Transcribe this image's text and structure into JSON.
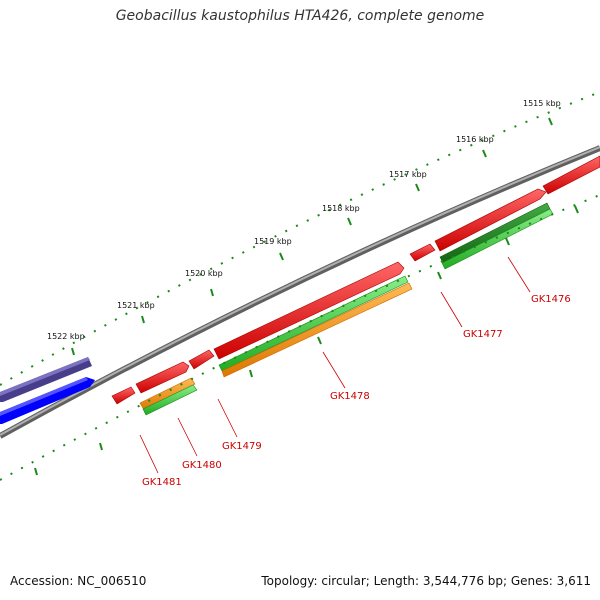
{
  "title": "Geobacillus kaustophilus HTA426, complete genome",
  "footer": {
    "accession": "Accession: NC_006510",
    "topology": "Topology: circular; Length: 3,544,776 bp; Genes: 3,611"
  },
  "colors": {
    "backbone": "#808080",
    "cds": "#ff0000",
    "gene_green": "#33cc33",
    "gene_darkgreen": "#228b22",
    "gene_orange": "#ff9900",
    "blue": "#0000ff",
    "slate": "#483d8b",
    "ticks": "#1a8a1a",
    "label": "#cc0000"
  },
  "scale_ticks": [
    {
      "label": "1515 kbp"
    },
    {
      "label": "1516 kbp"
    },
    {
      "label": "1517 kbp"
    },
    {
      "label": "1518 kbp"
    },
    {
      "label": "1519 kbp"
    },
    {
      "label": "1520 kbp"
    },
    {
      "label": "1521 kbp"
    },
    {
      "label": "1522 kbp"
    }
  ],
  "gene_labels": [
    {
      "label": "GK1476"
    },
    {
      "label": "GK1477"
    },
    {
      "label": "GK1478"
    },
    {
      "label": "GK1479"
    },
    {
      "label": "GK1480"
    },
    {
      "label": "GK1481"
    }
  ]
}
